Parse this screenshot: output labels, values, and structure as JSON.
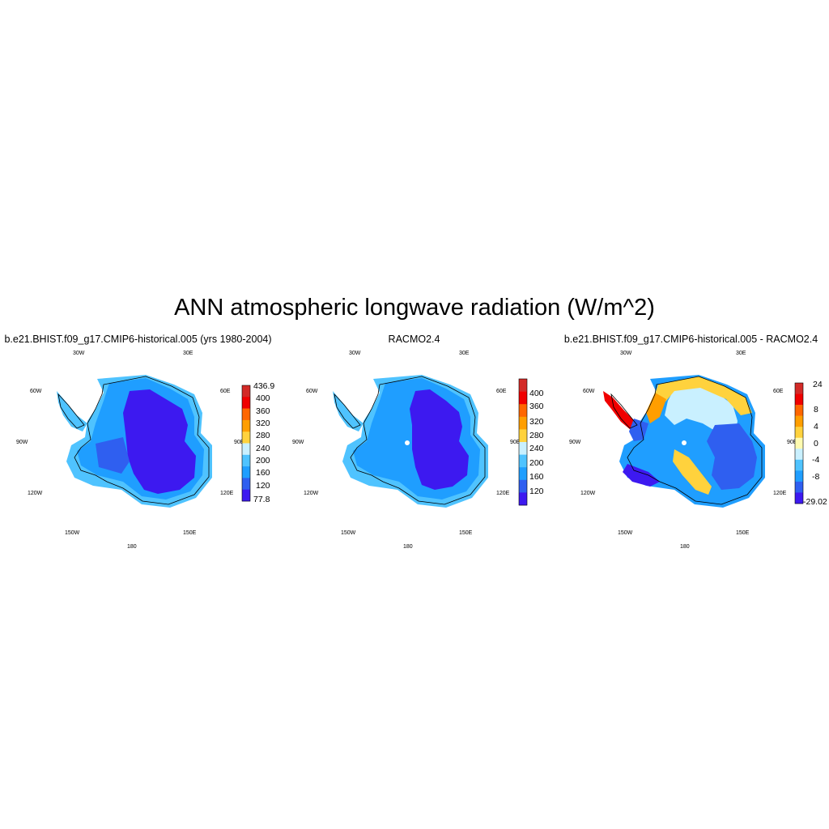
{
  "figure": {
    "title": "ANN atmospheric longwave radiation (W/m^2)"
  },
  "panels": [
    {
      "title": "b.e21.BHIST.f09_g17.CMIP6-historical.005 (yrs 1980-2004)",
      "lon_labels": [
        "30W",
        "30E",
        "60W",
        "60E",
        "90W",
        "90E",
        "120W",
        "120E",
        "150W",
        "150E",
        "180"
      ],
      "colorbar": {
        "labels": [
          "436.9",
          "400",
          "360",
          "320",
          "280",
          "240",
          "200",
          "160",
          "120",
          "77.8"
        ],
        "colors": [
          "#d32a27",
          "#f00000",
          "#ff6600",
          "#ff9e00",
          "#ffd23d",
          "#c9f0ff",
          "#4fc3ff",
          "#1f9eff",
          "#2f5ff0",
          "#3d19f0"
        ]
      }
    },
    {
      "title": "RACMO2.4",
      "lon_labels": [
        "30W",
        "30E",
        "60W",
        "60E",
        "90W",
        "90E",
        "120W",
        "120E",
        "150W",
        "150E",
        "180"
      ],
      "colorbar": {
        "labels": [
          "400",
          "360",
          "320",
          "280",
          "240",
          "200",
          "160",
          "120"
        ],
        "colors": [
          "#d32a27",
          "#f00000",
          "#ff6600",
          "#ff9e00",
          "#ffd23d",
          "#c9f0ff",
          "#4fc3ff",
          "#1f9eff",
          "#2f5ff0",
          "#3d19f0"
        ]
      }
    },
    {
      "title": "b.e21.BHIST.f09_g17.CMIP6-historical.005 - RACMO2.4",
      "lon_labels": [
        "30W",
        "30E",
        "60W",
        "60E",
        "90W",
        "90E",
        "120W",
        "120E",
        "150W",
        "150E",
        "180"
      ],
      "colorbar": {
        "labels": [
          "24",
          "8",
          "4",
          "0",
          "-4",
          "-8",
          "-29.02"
        ],
        "colors": [
          "#d32a27",
          "#f00000",
          "#ff6600",
          "#ff9e00",
          "#ffd23d",
          "#fffbb0",
          "#c9f0ff",
          "#4fc3ff",
          "#1f9eff",
          "#2f5ff0",
          "#3d19f0"
        ]
      }
    }
  ]
}
